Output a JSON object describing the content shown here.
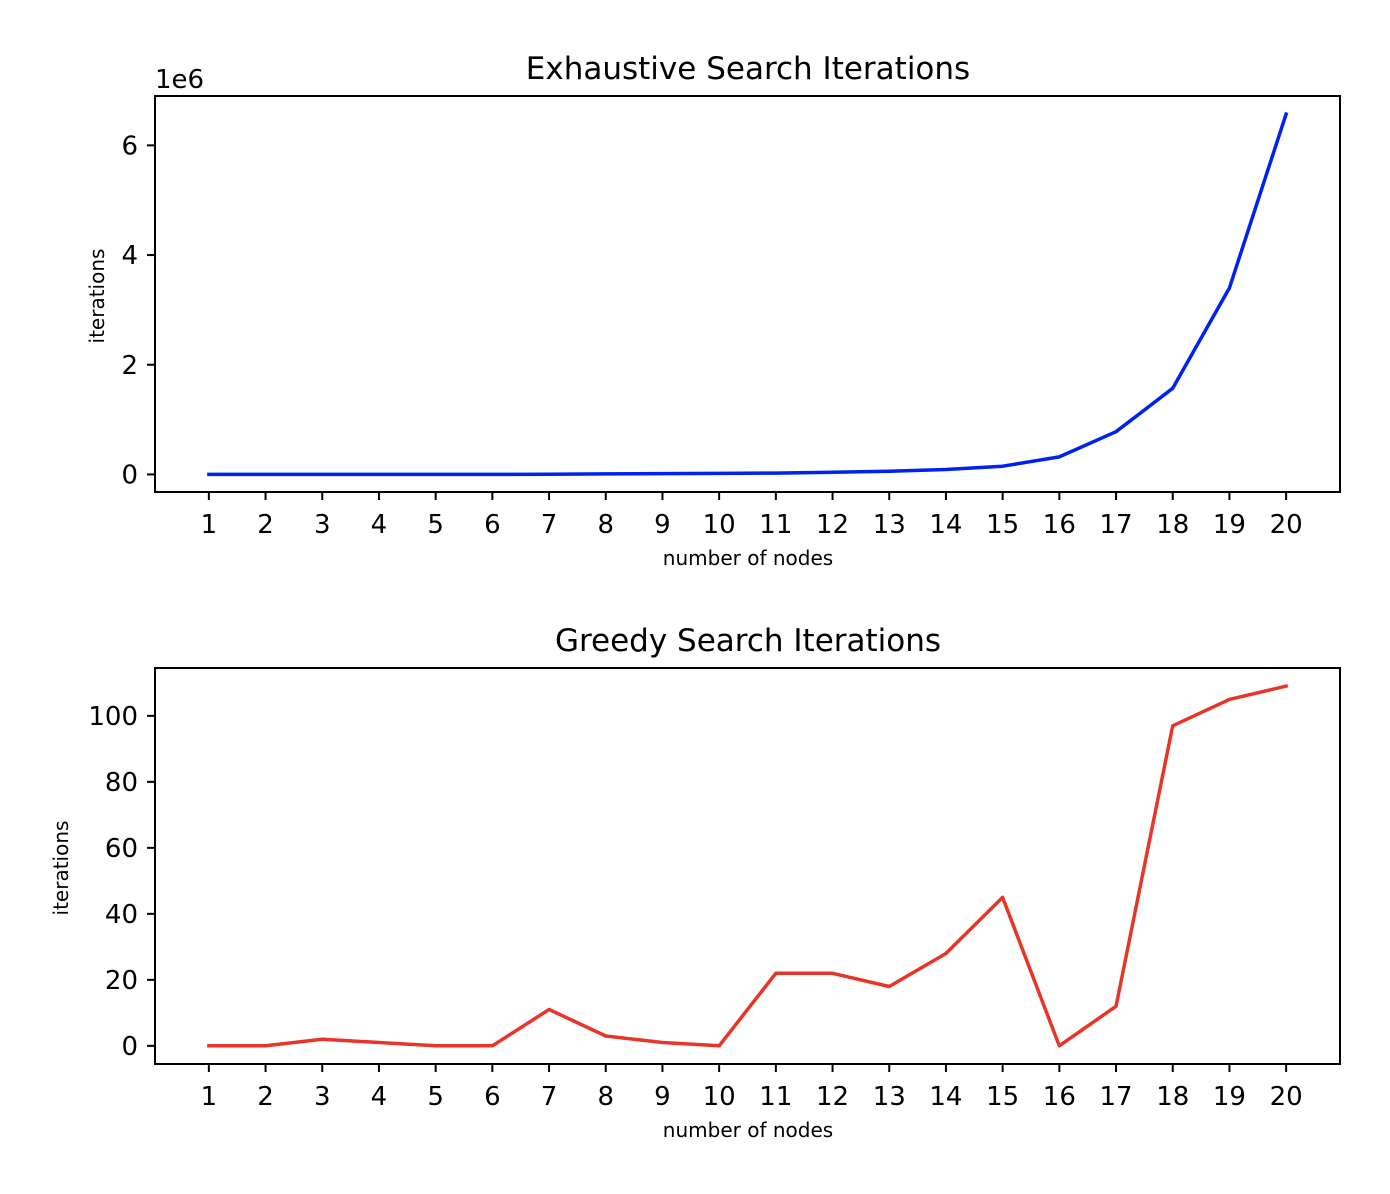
{
  "chart_data": [
    {
      "type": "line",
      "title": "Exhaustive Search Iterations",
      "xlabel": "number of nodes",
      "ylabel": "iterations",
      "y_offset_label": "1e6",
      "x": [
        1,
        2,
        3,
        4,
        5,
        6,
        7,
        8,
        9,
        10,
        11,
        12,
        13,
        14,
        15,
        16,
        17,
        18,
        19,
        20
      ],
      "x_tick_labels": [
        "1",
        "2",
        "3",
        "4",
        "5",
        "6",
        "7",
        "8",
        "9",
        "10",
        "11",
        "12",
        "13",
        "14",
        "15",
        "16",
        "17",
        "18",
        "19",
        "20"
      ],
      "series": [
        {
          "color": "#0022ee",
          "values": [
            1,
            2,
            6,
            24,
            120,
            720,
            5040,
            10000,
            15000,
            20000,
            25000,
            40000,
            60000,
            90000,
            150000,
            320000,
            780000,
            1570000,
            3400000,
            6570000
          ]
        }
      ],
      "ylim": [
        -320000,
        6900000
      ],
      "y_ticks": [
        0,
        2000000,
        4000000,
        6000000
      ],
      "y_tick_labels": [
        "0",
        "2",
        "4",
        "6"
      ],
      "grid": false
    },
    {
      "type": "line",
      "title": "Greedy Search Iterations",
      "xlabel": "number of nodes",
      "ylabel": "iterations",
      "x": [
        1,
        2,
        3,
        4,
        5,
        6,
        7,
        8,
        9,
        10,
        11,
        12,
        13,
        14,
        15,
        16,
        17,
        18,
        19,
        20
      ],
      "x_tick_labels": [
        "1",
        "2",
        "3",
        "4",
        "5",
        "6",
        "7",
        "8",
        "9",
        "10",
        "11",
        "12",
        "13",
        "14",
        "15",
        "16",
        "17",
        "18",
        "19",
        "20"
      ],
      "series": [
        {
          "color": "#e8352a",
          "values": [
            0,
            0,
            2,
            1,
            0,
            0,
            11,
            3,
            1,
            0,
            22,
            22,
            18,
            28,
            45,
            0,
            12,
            97,
            105,
            109
          ]
        }
      ],
      "ylim": [
        -5.5,
        114.5
      ],
      "y_ticks": [
        0,
        20,
        40,
        60,
        80,
        100
      ],
      "y_tick_labels": [
        "0",
        "20",
        "40",
        "60",
        "80",
        "100"
      ],
      "grid": false
    }
  ]
}
